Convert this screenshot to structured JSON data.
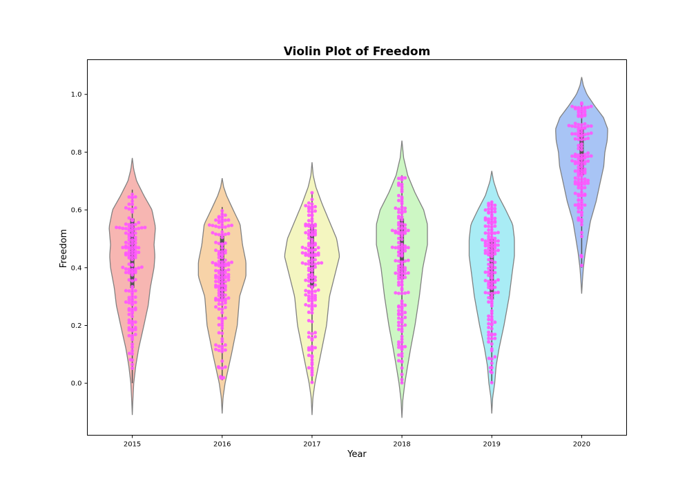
{
  "chart_data": {
    "type": "violin",
    "title": "Violin Plot of Freedom",
    "xlabel": "Year",
    "ylabel": "Freedom",
    "categories": [
      "2015",
      "2016",
      "2017",
      "2018",
      "2019",
      "2020"
    ],
    "ylim": [
      -0.18,
      1.12
    ],
    "yticks": [
      0.0,
      0.2,
      0.4,
      0.6,
      0.8,
      1.0
    ],
    "ytick_labels": [
      "0.0",
      "0.2",
      "0.4",
      "0.6",
      "0.8",
      "1.0"
    ],
    "grid": false,
    "legend": "none",
    "violin_colors": [
      "#f7b6b2",
      "#f7d3a8",
      "#f4f6c0",
      "#cdf7c4",
      "#a9ecf5",
      "#a8c4f5"
    ],
    "violin_edge_color": "#808080",
    "point_color": "#ff55ff",
    "series": [
      {
        "category": "2015",
        "range": [
          -0.11,
          0.78
        ],
        "density": [
          [
            -0.11,
            0.0
          ],
          [
            -0.06,
            0.02
          ],
          [
            0.0,
            0.05
          ],
          [
            0.06,
            0.12
          ],
          [
            0.12,
            0.22
          ],
          [
            0.2,
            0.4
          ],
          [
            0.27,
            0.55
          ],
          [
            0.33,
            0.62
          ],
          [
            0.4,
            0.75
          ],
          [
            0.44,
            0.78
          ],
          [
            0.48,
            0.75
          ],
          [
            0.54,
            0.8
          ],
          [
            0.6,
            0.68
          ],
          [
            0.65,
            0.4
          ],
          [
            0.7,
            0.15
          ],
          [
            0.74,
            0.05
          ],
          [
            0.78,
            0.0
          ]
        ],
        "median": 0.45,
        "q1": 0.33,
        "q3": 0.57,
        "whisker": [
          0.0,
          0.67
        ]
      },
      {
        "category": "2016",
        "range": [
          -0.105,
          0.71
        ],
        "density": [
          [
            -0.105,
            0.0
          ],
          [
            -0.05,
            0.03
          ],
          [
            0.0,
            0.1
          ],
          [
            0.1,
            0.32
          ],
          [
            0.2,
            0.52
          ],
          [
            0.3,
            0.6
          ],
          [
            0.37,
            0.82
          ],
          [
            0.42,
            0.82
          ],
          [
            0.48,
            0.7
          ],
          [
            0.55,
            0.62
          ],
          [
            0.6,
            0.38
          ],
          [
            0.65,
            0.15
          ],
          [
            0.68,
            0.05
          ],
          [
            0.71,
            0.0
          ]
        ],
        "median": 0.39,
        "q1": 0.29,
        "q3": 0.51,
        "whisker": [
          0.01,
          0.61
        ]
      },
      {
        "category": "2017",
        "range": [
          -0.11,
          0.765
        ],
        "density": [
          [
            -0.11,
            0.0
          ],
          [
            -0.05,
            0.03
          ],
          [
            0.0,
            0.1
          ],
          [
            0.1,
            0.3
          ],
          [
            0.2,
            0.5
          ],
          [
            0.3,
            0.6
          ],
          [
            0.38,
            0.8
          ],
          [
            0.44,
            0.95
          ],
          [
            0.5,
            0.85
          ],
          [
            0.56,
            0.6
          ],
          [
            0.62,
            0.35
          ],
          [
            0.68,
            0.13
          ],
          [
            0.72,
            0.04
          ],
          [
            0.765,
            0.0
          ]
        ],
        "median": 0.45,
        "q1": 0.33,
        "q3": 0.55,
        "whisker": [
          0.0,
          0.66
        ]
      },
      {
        "category": "2018",
        "range": [
          -0.12,
          0.84
        ],
        "density": [
          [
            -0.12,
            0.0
          ],
          [
            -0.06,
            0.03
          ],
          [
            0.0,
            0.1
          ],
          [
            0.05,
            0.18
          ],
          [
            0.12,
            0.3
          ],
          [
            0.2,
            0.45
          ],
          [
            0.3,
            0.6
          ],
          [
            0.4,
            0.72
          ],
          [
            0.48,
            0.88
          ],
          [
            0.55,
            0.88
          ],
          [
            0.6,
            0.75
          ],
          [
            0.66,
            0.45
          ],
          [
            0.72,
            0.2
          ],
          [
            0.78,
            0.06
          ],
          [
            0.84,
            0.0
          ]
        ],
        "median": 0.47,
        "q1": 0.36,
        "q3": 0.57,
        "whisker": [
          0.0,
          0.72
        ]
      },
      {
        "category": "2019",
        "range": [
          -0.105,
          0.735
        ],
        "density": [
          [
            -0.105,
            0.0
          ],
          [
            -0.05,
            0.03
          ],
          [
            0.0,
            0.1
          ],
          [
            0.06,
            0.15
          ],
          [
            0.12,
            0.25
          ],
          [
            0.2,
            0.42
          ],
          [
            0.3,
            0.6
          ],
          [
            0.38,
            0.7
          ],
          [
            0.44,
            0.78
          ],
          [
            0.5,
            0.78
          ],
          [
            0.55,
            0.72
          ],
          [
            0.6,
            0.48
          ],
          [
            0.65,
            0.22
          ],
          [
            0.7,
            0.06
          ],
          [
            0.735,
            0.0
          ]
        ],
        "median": 0.4,
        "q1": 0.29,
        "q3": 0.5,
        "whisker": [
          0.0,
          0.63
        ]
      },
      {
        "category": "2020",
        "range": [
          0.31,
          1.06
        ],
        "density": [
          [
            0.31,
            0.0
          ],
          [
            0.36,
            0.03
          ],
          [
            0.4,
            0.06
          ],
          [
            0.45,
            0.12
          ],
          [
            0.5,
            0.2
          ],
          [
            0.56,
            0.3
          ],
          [
            0.63,
            0.5
          ],
          [
            0.7,
            0.65
          ],
          [
            0.75,
            0.76
          ],
          [
            0.8,
            0.8
          ],
          [
            0.84,
            0.88
          ],
          [
            0.88,
            0.9
          ],
          [
            0.92,
            0.75
          ],
          [
            0.96,
            0.45
          ],
          [
            1.0,
            0.18
          ],
          [
            1.03,
            0.06
          ],
          [
            1.06,
            0.0
          ]
        ],
        "median": 0.81,
        "q1": 0.72,
        "q3": 0.88,
        "whisker": [
          0.4,
          0.97
        ]
      }
    ]
  }
}
